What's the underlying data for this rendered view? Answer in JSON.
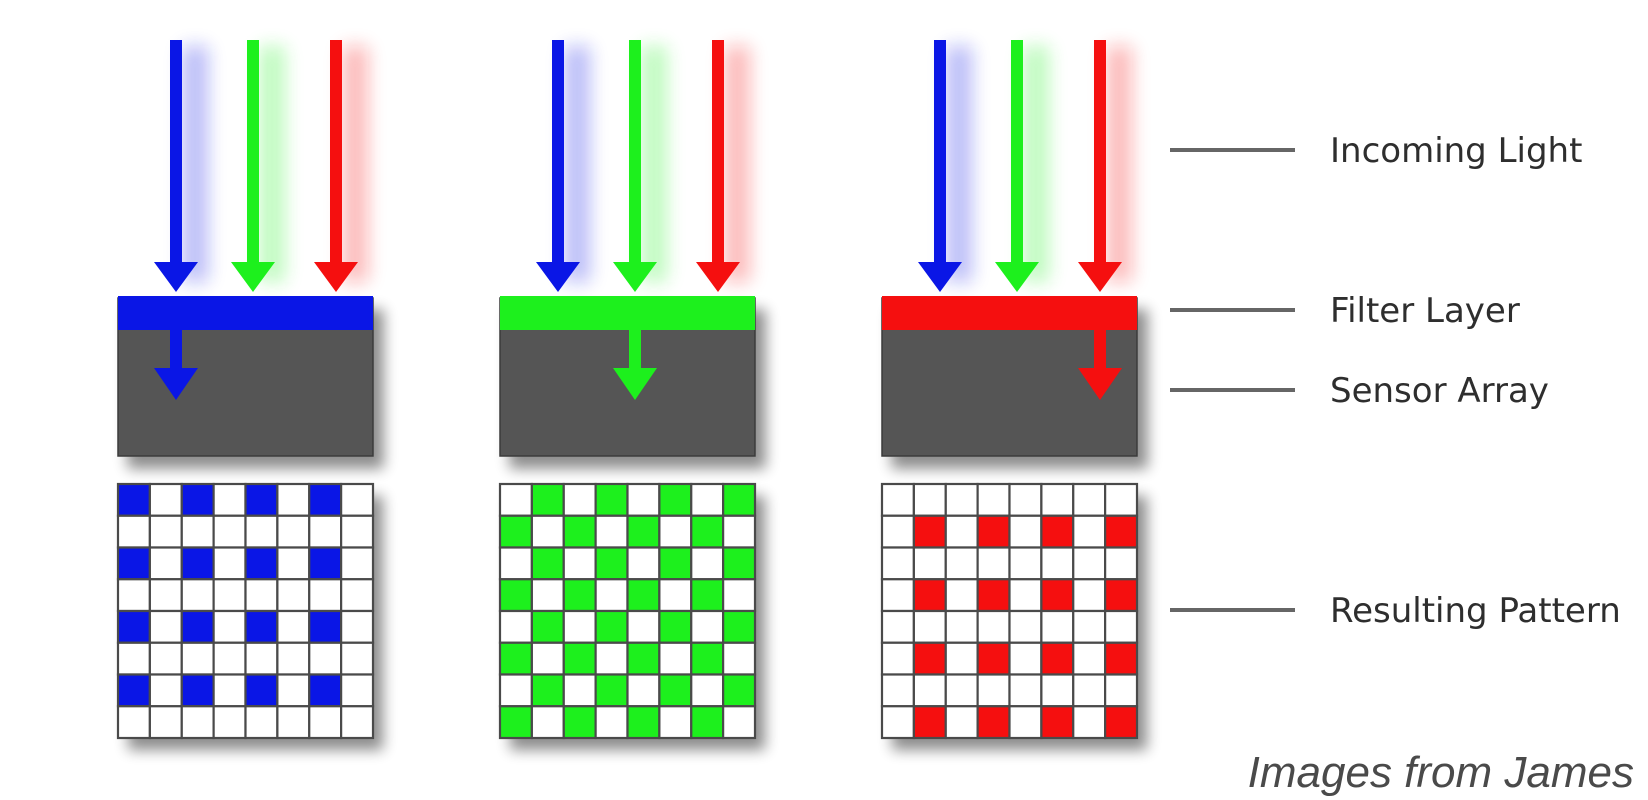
{
  "colors": {
    "blue": "#0a16e6",
    "green": "#1df01d",
    "red": "#f50f0f",
    "sensor": "#545454",
    "grid_line": "#4a4a4a",
    "callout_line": "#666666",
    "label_text": "#2e2e2e"
  },
  "light_rays": [
    "blue",
    "green",
    "red"
  ],
  "callouts": {
    "incoming_light": "Incoming Light",
    "filter_layer": "Filter Layer",
    "sensor_array": "Sensor Array",
    "resulting_pattern": "Resulting Pattern"
  },
  "filters": [
    {
      "color": "blue",
      "passes": "blue",
      "pattern": "blue"
    },
    {
      "color": "green",
      "passes": "green",
      "pattern": "green"
    },
    {
      "color": "red",
      "passes": "red",
      "pattern": "red"
    }
  ],
  "pattern_grid": {
    "rows": 8,
    "cols": 8
  },
  "patterns": {
    "blue": {
      "row_parity": 0,
      "col_parity": 0
    },
    "green": {
      "checker_parity": 1
    },
    "red": {
      "row_parity": 1,
      "col_parity": 1
    }
  },
  "credit": "Images from James"
}
